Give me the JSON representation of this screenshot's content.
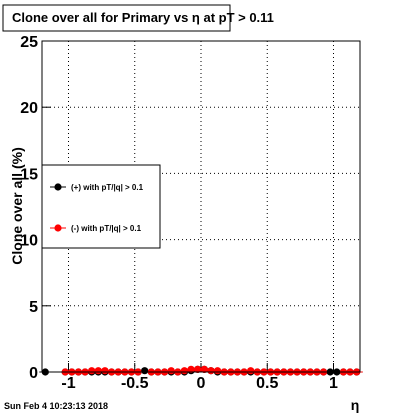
{
  "chart_data": {
    "type": "scatter",
    "title": "Clone  over all for Primary vs   η at pT > 0.11",
    "x_label": "η",
    "y_label": "Clone  over all (%)",
    "timestamp": "Sun Feb  4 10:23:13 2018",
    "xlim": [
      -1.2,
      1.2
    ],
    "xticks": [
      -1,
      -0.5,
      0,
      0.5,
      1
    ],
    "ylim": [
      0,
      25
    ],
    "yticks": [
      0,
      5,
      10,
      15,
      20,
      25
    ],
    "grid": true,
    "x": [
      -1.175,
      -1.125,
      -1.075,
      -1.025,
      -0.975,
      -0.925,
      -0.875,
      -0.825,
      -0.775,
      -0.725,
      -0.675,
      -0.625,
      -0.575,
      -0.525,
      -0.475,
      -0.425,
      -0.375,
      -0.325,
      -0.275,
      -0.225,
      -0.175,
      -0.125,
      -0.075,
      -0.025,
      0.025,
      0.075,
      0.125,
      0.175,
      0.225,
      0.275,
      0.325,
      0.375,
      0.425,
      0.475,
      0.525,
      0.575,
      0.625,
      0.675,
      0.725,
      0.775,
      0.825,
      0.875,
      0.925,
      0.975,
      1.025,
      1.075,
      1.125,
      1.175
    ],
    "series": [
      {
        "name": "(+) with pT/|q| > 0.1",
        "color": "#000000",
        "values": [
          0,
          null,
          null,
          0,
          0,
          0,
          0,
          0,
          0,
          0,
          0,
          0,
          0,
          0,
          0,
          0.1,
          0,
          0,
          0,
          0,
          0,
          0,
          0.1,
          0.2,
          0.2,
          0.1,
          0,
          0,
          0,
          0,
          0,
          0,
          0,
          0,
          0,
          0,
          0,
          0,
          0,
          0,
          0,
          0,
          0,
          0,
          0,
          0,
          0,
          0
        ]
      },
      {
        "name": "(-) with pT/|q| > 0.1",
        "color": "#ff0000",
        "values": [
          null,
          null,
          null,
          0,
          0,
          0,
          0,
          0.1,
          0.1,
          0.1,
          0,
          0,
          0,
          0,
          0,
          null,
          0,
          0,
          0,
          0.1,
          0,
          0.1,
          0.2,
          0.2,
          0.2,
          0.1,
          0.1,
          0,
          0,
          0,
          0,
          0.1,
          0,
          0,
          0,
          0,
          0,
          0,
          0,
          0,
          0,
          0,
          0,
          null,
          null,
          0,
          0,
          0
        ]
      }
    ]
  }
}
